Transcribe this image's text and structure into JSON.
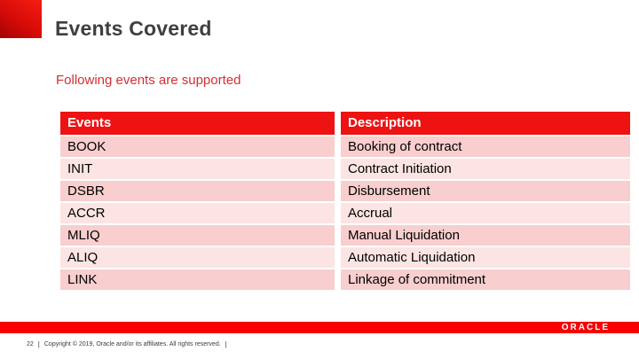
{
  "slide": {
    "title": "Events Covered",
    "subtitle": "Following events are supported"
  },
  "table": {
    "headers": [
      "Events",
      "Description"
    ],
    "rows": [
      {
        "event": "BOOK",
        "description": "Booking of contract"
      },
      {
        "event": "INIT",
        "description": "Contract Initiation"
      },
      {
        "event": "DSBR",
        "description": "Disbursement"
      },
      {
        "event": "ACCR",
        "description": "Accrual"
      },
      {
        "event": "MLIQ",
        "description": "Manual Liquidation"
      },
      {
        "event": "ALIQ",
        "description": "Automatic Liquidation"
      },
      {
        "event": "LINK",
        "description": "Linkage of commitment"
      }
    ]
  },
  "footer": {
    "page_number": "22",
    "separator": "|",
    "copyright": "Copyright © 2019, Oracle and/or its affiliates. All rights reserved.",
    "logo": "ORACLE"
  },
  "colors": {
    "header_red": "#ee1212",
    "row_dark_pink": "#f8cece",
    "row_light_pink": "#fce4e4",
    "bottom_bar_red": "#f80000",
    "subtitle_red": "#d22f34",
    "title_gray": "#3f3f3f",
    "brand_square_red_top": "#f31c10",
    "brand_square_red_bottom": "#a30403"
  }
}
